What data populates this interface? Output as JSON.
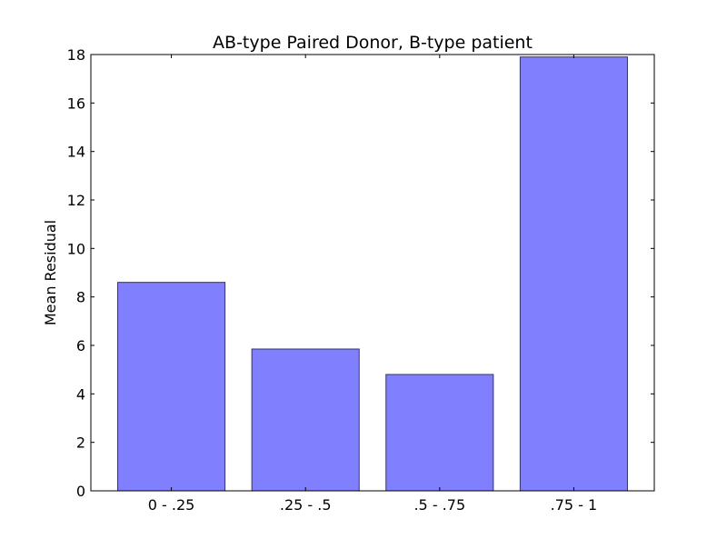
{
  "chart_data": {
    "type": "bar",
    "title": "AB-type Paired Donor, B-type patient",
    "xlabel": "",
    "ylabel": "Mean Residual",
    "categories": [
      "0 - .25",
      ".25 - .5",
      ".5 - .75",
      ".75 - 1"
    ],
    "values": [
      8.6,
      5.85,
      4.8,
      17.9
    ],
    "ylim": [
      0,
      18
    ],
    "yticks": [
      "0",
      "2",
      "4",
      "6",
      "8",
      "10",
      "12",
      "14",
      "16",
      "18"
    ],
    "grid": false,
    "legend": "none",
    "bar_color": "#8080ff",
    "bar_edge_color": "#333366"
  }
}
